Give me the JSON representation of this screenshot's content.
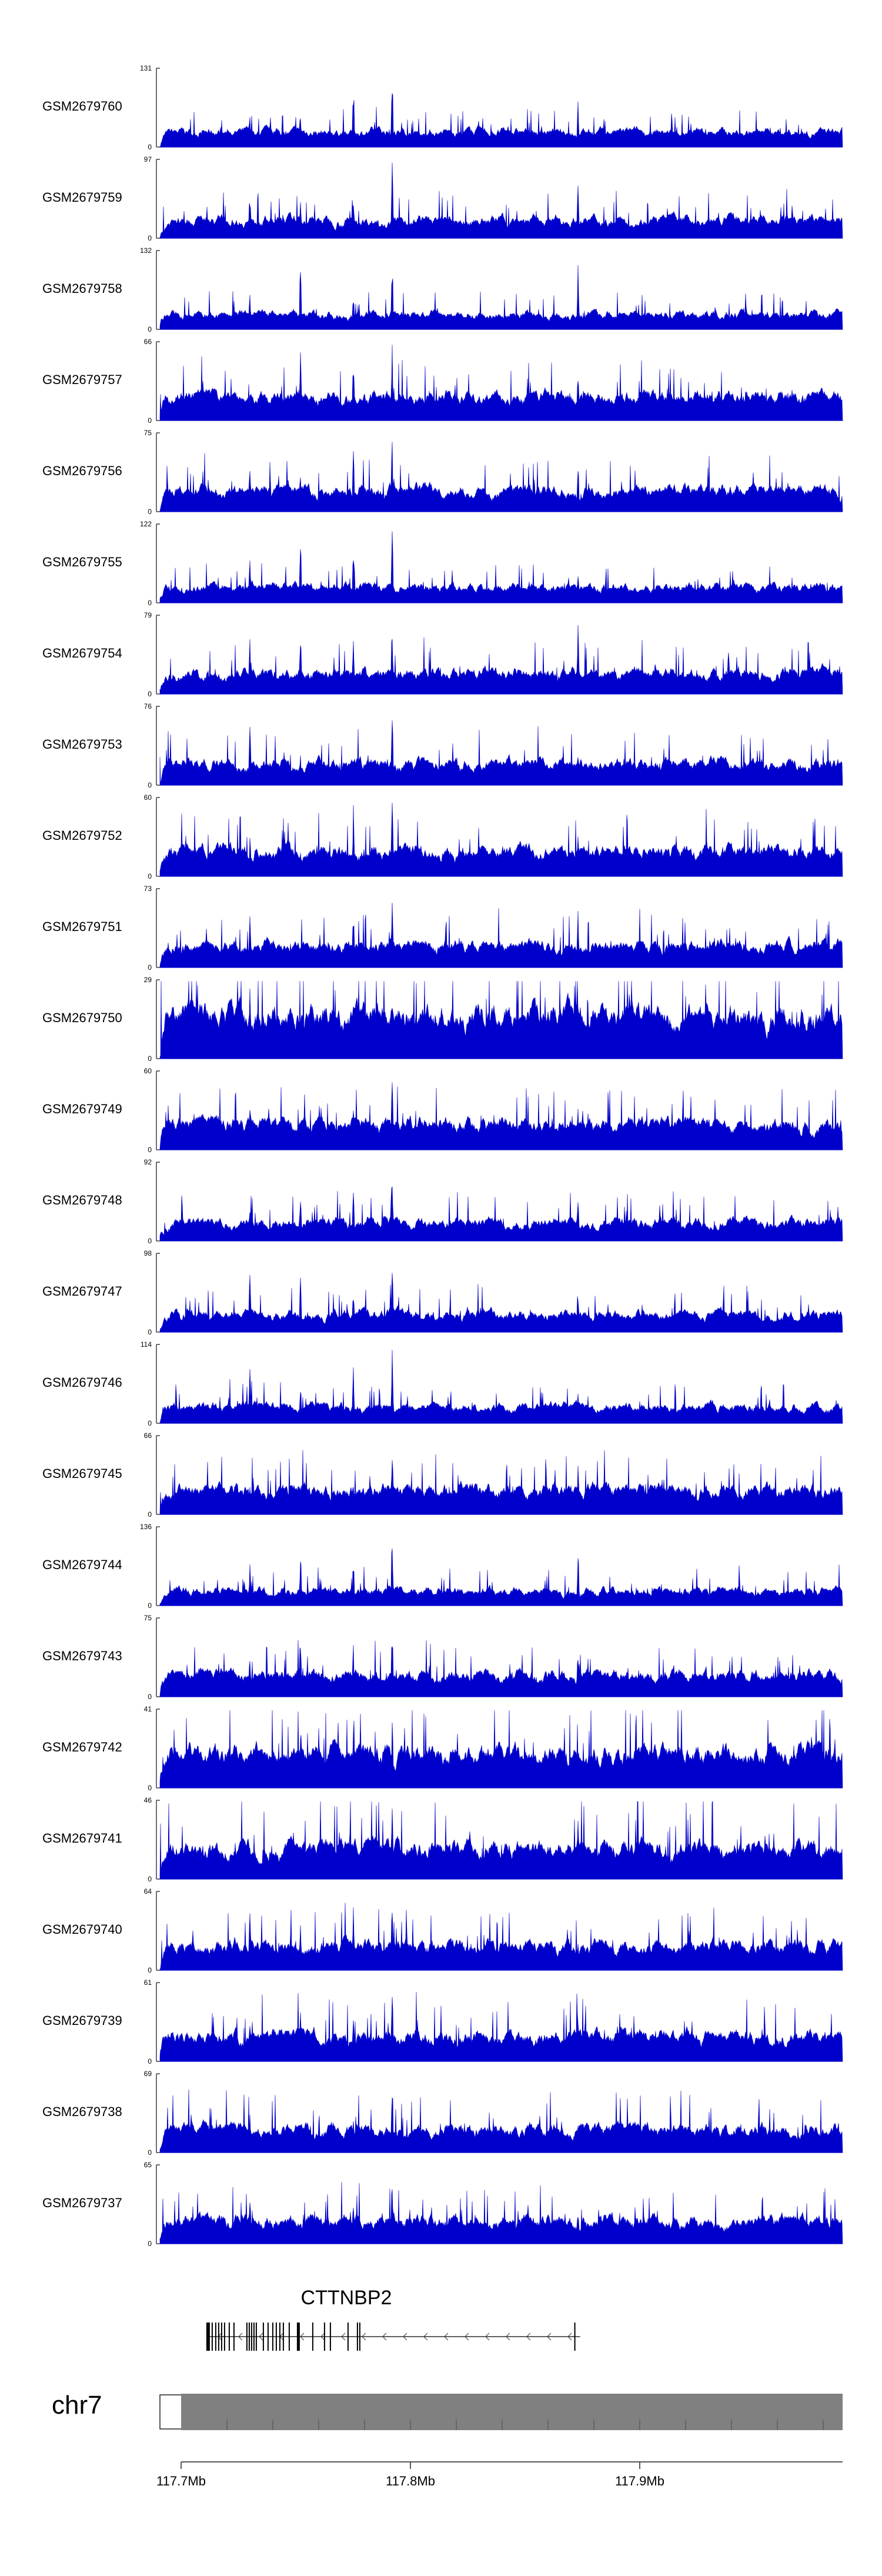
{
  "chart_data": {
    "type": "area",
    "series_color": "#0000cc",
    "tracks": [
      {
        "name": "GSM2679760",
        "ymax": 131,
        "ymin": 0
      },
      {
        "name": "GSM2679759",
        "ymax": 97,
        "ymin": 0
      },
      {
        "name": "GSM2679758",
        "ymax": 132,
        "ymin": 0
      },
      {
        "name": "GSM2679757",
        "ymax": 66,
        "ymin": 0
      },
      {
        "name": "GSM2679756",
        "ymax": 75,
        "ymin": 0
      },
      {
        "name": "GSM2679755",
        "ymax": 122,
        "ymin": 0
      },
      {
        "name": "GSM2679754",
        "ymax": 79,
        "ymin": 0
      },
      {
        "name": "GSM2679753",
        "ymax": 76,
        "ymin": 0
      },
      {
        "name": "GSM2679752",
        "ymax": 60,
        "ymin": 0
      },
      {
        "name": "GSM2679751",
        "ymax": 73,
        "ymin": 0
      },
      {
        "name": "GSM2679750",
        "ymax": 29,
        "ymin": 0
      },
      {
        "name": "GSM2679749",
        "ymax": 60,
        "ymin": 0
      },
      {
        "name": "GSM2679748",
        "ymax": 92,
        "ymin": 0
      },
      {
        "name": "GSM2679747",
        "ymax": 98,
        "ymin": 0
      },
      {
        "name": "GSM2679746",
        "ymax": 114,
        "ymin": 0
      },
      {
        "name": "GSM2679745",
        "ymax": 66,
        "ymin": 0
      },
      {
        "name": "GSM2679744",
        "ymax": 136,
        "ymin": 0
      },
      {
        "name": "GSM2679743",
        "ymax": 75,
        "ymin": 0
      },
      {
        "name": "GSM2679742",
        "ymax": 41,
        "ymin": 0
      },
      {
        "name": "GSM2679741",
        "ymax": 46,
        "ymin": 0
      },
      {
        "name": "GSM2679740",
        "ymax": 64,
        "ymin": 0
      },
      {
        "name": "GSM2679739",
        "ymax": 61,
        "ymin": 0
      },
      {
        "name": "GSM2679738",
        "ymax": 69,
        "ymin": 0
      },
      {
        "name": "GSM2679737",
        "ymax": 65,
        "ymin": 0
      }
    ],
    "gene": {
      "name": "CTTNBP2",
      "start_mb": 117.711,
      "end_mb": 117.874,
      "strand": "-"
    },
    "chromosome": {
      "name": "chr7",
      "xlim_mb": [
        117.7,
        117.991
      ]
    },
    "axis": {
      "ticks": [
        117.7,
        117.8,
        117.9
      ],
      "tick_labels": [
        "117.7Mb",
        "117.8Mb",
        "117.9Mb"
      ]
    },
    "peaks_mb": [
      117.73,
      117.752,
      117.775,
      117.792,
      117.873
    ]
  }
}
